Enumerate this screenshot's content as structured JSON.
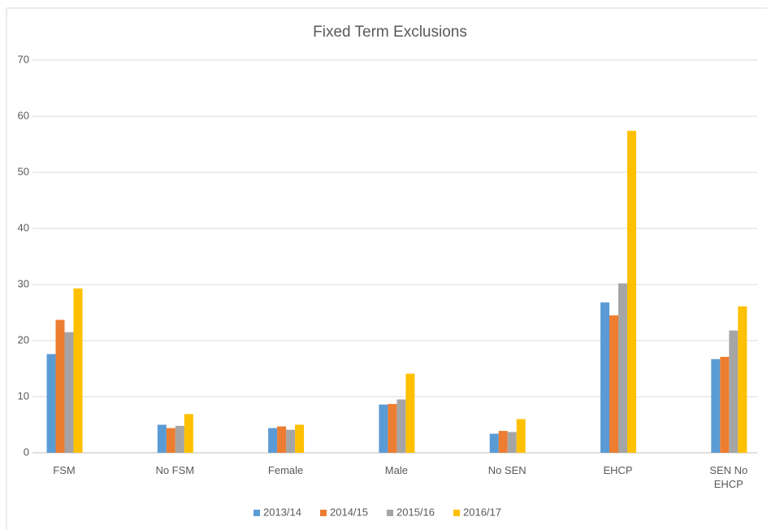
{
  "chart_data": {
    "type": "bar",
    "title": "Fixed Term Exclusions",
    "categories": [
      "FSM",
      "No FSM",
      "Female",
      "Male",
      "No SEN",
      "EHCP",
      "SEN No EHCP"
    ],
    "series": [
      {
        "name": "2013/14",
        "color": "#5b9bd5",
        "values": [
          17.6,
          5.0,
          4.4,
          8.6,
          3.4,
          26.8,
          16.7
        ]
      },
      {
        "name": "2014/15",
        "color": "#ed7d31",
        "values": [
          23.7,
          4.4,
          4.7,
          8.7,
          3.9,
          24.5,
          17.1
        ]
      },
      {
        "name": "2015/16",
        "color": "#a5a5a5",
        "values": [
          21.5,
          4.8,
          4.1,
          9.5,
          3.7,
          30.2,
          21.8
        ]
      },
      {
        "name": "2016/17",
        "color": "#ffc000",
        "values": [
          29.3,
          6.9,
          5.0,
          14.1,
          6.0,
          57.4,
          26.1
        ]
      }
    ],
    "ylim": [
      0,
      70
    ],
    "yticks": [
      0,
      10,
      20,
      30,
      40,
      50,
      60,
      70
    ],
    "grid": true,
    "legend": "bottom"
  }
}
